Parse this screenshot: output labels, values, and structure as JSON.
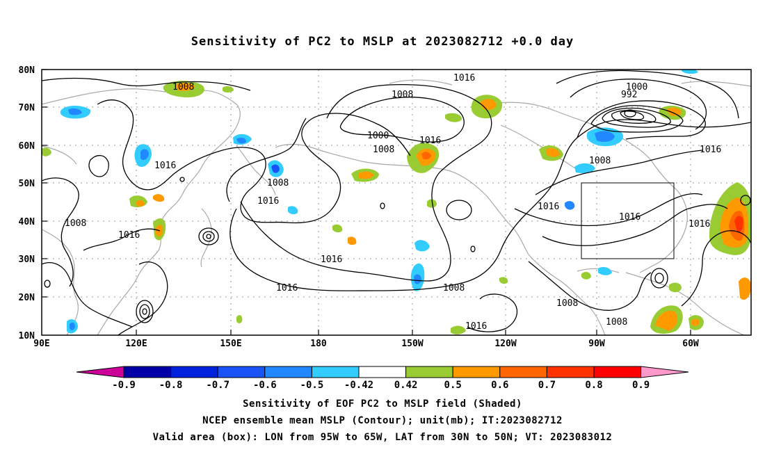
{
  "title": "Sensitivity of PC2 to MSLP at 2023082712 +0.0 day",
  "map": {
    "lat_labels": [
      "80N",
      "70N",
      "60N",
      "50N",
      "40N",
      "30N",
      "20N",
      "10N"
    ],
    "lon_labels": [
      "90E",
      "120E",
      "150E",
      "180",
      "150W",
      "120W",
      "90W",
      "60W"
    ],
    "contour_labels": [
      "1016",
      "1008",
      "1008",
      "1000",
      "992",
      "1000",
      "1008",
      "1016",
      "1016",
      "1008",
      "1008",
      "1008",
      "1016",
      "1016",
      "1016",
      "1016",
      "1016",
      "1016",
      "1016",
      "1016",
      "1008",
      "1008",
      "1016"
    ],
    "valid_box": {
      "lon_from": "95W",
      "lon_to": "65W",
      "lat_from": "30N",
      "lat_to": "50N"
    }
  },
  "colorbar": {
    "labels": [
      "-0.9",
      "-0.8",
      "-0.7",
      "-0.6",
      "-0.5",
      "-0.42",
      "0.42",
      "0.5",
      "0.6",
      "0.7",
      "0.8",
      "0.9"
    ],
    "colors": [
      "#cc0099",
      "#0000a6",
      "#0022dd",
      "#1a53f5",
      "#2288ff",
      "#33ccff",
      "#ffffff",
      "#99cc33",
      "#ff9900",
      "#ff6600",
      "#ff3300",
      "#ff0000",
      "#ff99cc"
    ]
  },
  "footer": {
    "line1": "Sensitivity of EOF PC2 to MSLP field (Shaded)",
    "line2": "NCEP ensemble mean MSLP (Contour); unit(mb); IT:2023082712",
    "line3": "Valid area (box): LON from 95W to 65W, LAT from 30N to 50N; VT: 2023083012"
  }
}
